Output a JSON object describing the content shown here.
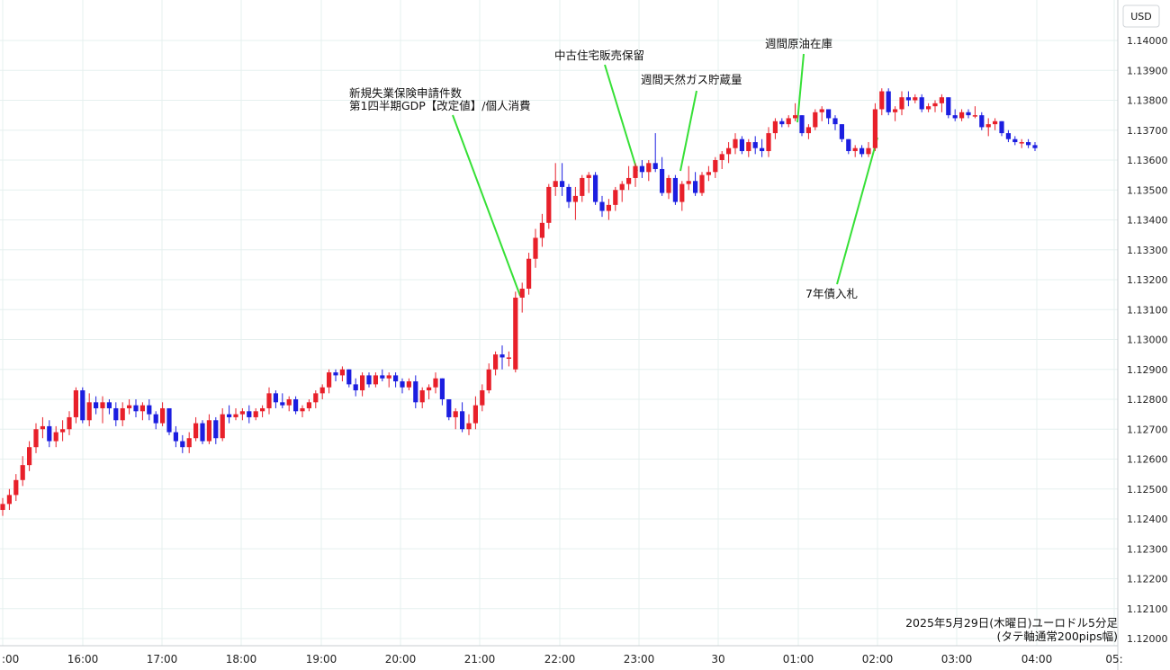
{
  "chart_data": {
    "type": "candlestick",
    "title": "",
    "currency_label": "USD",
    "footnote": [
      "2025年5月29日(木曜日)ユーロドル5分足",
      "(タテ軸通常200pips幅)"
    ],
    "x_tick_labels": [
      ":00",
      "16:00",
      "17:00",
      "18:00",
      "19:00",
      "20:00",
      "21:00",
      "22:00",
      "23:00",
      "30",
      "01:00",
      "02:00",
      "03:00",
      "04:00",
      "05:"
    ],
    "y_tick_labels": [
      "1.14000",
      "1.13900",
      "1.13800",
      "1.13700",
      "1.13600",
      "1.13500",
      "1.13400",
      "1.13300",
      "1.13200",
      "1.13100",
      "1.13000",
      "1.12900",
      "1.12800",
      "1.12700",
      "1.12600",
      "1.12500",
      "1.12400",
      "1.12300",
      "1.12200",
      "1.12100",
      "1.12000"
    ],
    "ylim": [
      1.1195,
      1.1412
    ],
    "grid": true,
    "colors": {
      "up": "#e8202a",
      "down": "#1c1ee0",
      "annotation_line": "#36e036",
      "grid": "#e6f0ef"
    },
    "annotations": [
      {
        "lines": [
          "新規失業保険申請件数",
          "第1四半期GDP【改定値】/個人消費"
        ]
      },
      {
        "lines": [
          "中古住宅販売保留"
        ]
      },
      {
        "lines": [
          "週間天然ガス貯蔵量"
        ]
      },
      {
        "lines": [
          "週間原油在庫"
        ]
      },
      {
        "lines": [
          "7年債入札"
        ]
      }
    ],
    "candles": [
      [
        1.1243,
        1.1247,
        1.1241,
        1.1245
      ],
      [
        1.1245,
        1.125,
        1.1243,
        1.1248
      ],
      [
        1.1248,
        1.1255,
        1.1246,
        1.1253
      ],
      [
        1.1253,
        1.1261,
        1.1251,
        1.1258
      ],
      [
        1.1258,
        1.1266,
        1.1256,
        1.1264
      ],
      [
        1.1264,
        1.1272,
        1.1262,
        1.127
      ],
      [
        1.127,
        1.1274,
        1.1267,
        1.1271
      ],
      [
        1.1271,
        1.1273,
        1.1264,
        1.1266
      ],
      [
        1.1266,
        1.1271,
        1.1264,
        1.1269
      ],
      [
        1.1269,
        1.1273,
        1.1266,
        1.127
      ],
      [
        1.127,
        1.1276,
        1.1268,
        1.1274
      ],
      [
        1.1274,
        1.1284,
        1.1272,
        1.1283
      ],
      [
        1.1283,
        1.1284,
        1.1272,
        1.1273
      ],
      [
        1.1273,
        1.1282,
        1.1271,
        1.1279
      ],
      [
        1.1279,
        1.1281,
        1.1275,
        1.1277
      ],
      [
        1.1277,
        1.1281,
        1.1272,
        1.1279
      ],
      [
        1.1279,
        1.128,
        1.1275,
        1.1277
      ],
      [
        1.1277,
        1.1279,
        1.1271,
        1.1273
      ],
      [
        1.1273,
        1.1279,
        1.1271,
        1.1277
      ],
      [
        1.1277,
        1.128,
        1.1275,
        1.1278
      ],
      [
        1.1278,
        1.128,
        1.1274,
        1.1276
      ],
      [
        1.1276,
        1.1279,
        1.1273,
        1.1278
      ],
      [
        1.1278,
        1.128,
        1.1273,
        1.1275
      ],
      [
        1.1275,
        1.1276,
        1.127,
        1.1272
      ],
      [
        1.1272,
        1.1279,
        1.1271,
        1.1277
      ],
      [
        1.1277,
        1.1277,
        1.1268,
        1.1269
      ],
      [
        1.1269,
        1.1271,
        1.1264,
        1.1266
      ],
      [
        1.1266,
        1.1268,
        1.1262,
        1.1264
      ],
      [
        1.1264,
        1.1269,
        1.1262,
        1.1267
      ],
      [
        1.1267,
        1.1274,
        1.1266,
        1.1272
      ],
      [
        1.1272,
        1.1273,
        1.1265,
        1.1266
      ],
      [
        1.1266,
        1.1275,
        1.1265,
        1.1273
      ],
      [
        1.1273,
        1.1274,
        1.1265,
        1.1267
      ],
      [
        1.1267,
        1.1277,
        1.1266,
        1.1275
      ],
      [
        1.1275,
        1.1278,
        1.1272,
        1.1274
      ],
      [
        1.1274,
        1.1277,
        1.1273,
        1.1275
      ],
      [
        1.1275,
        1.1277,
        1.1273,
        1.1276
      ],
      [
        1.1276,
        1.1278,
        1.1272,
        1.1274
      ],
      [
        1.1274,
        1.1277,
        1.1273,
        1.1276
      ],
      [
        1.1276,
        1.1278,
        1.1274,
        1.1277
      ],
      [
        1.1277,
        1.1284,
        1.1275,
        1.1282
      ],
      [
        1.1282,
        1.1283,
        1.1277,
        1.1279
      ],
      [
        1.1279,
        1.1282,
        1.1277,
        1.1278
      ],
      [
        1.1278,
        1.1281,
        1.1276,
        1.128
      ],
      [
        1.128,
        1.1281,
        1.1275,
        1.1276
      ],
      [
        1.1276,
        1.1278,
        1.1274,
        1.1277
      ],
      [
        1.1277,
        1.128,
        1.1276,
        1.1279
      ],
      [
        1.1279,
        1.1283,
        1.1277,
        1.1282
      ],
      [
        1.1282,
        1.1285,
        1.128,
        1.1284
      ],
      [
        1.1284,
        1.129,
        1.1282,
        1.1289
      ],
      [
        1.1289,
        1.129,
        1.1286,
        1.1288
      ],
      [
        1.1288,
        1.1291,
        1.1286,
        1.129
      ],
      [
        1.129,
        1.129,
        1.1284,
        1.1285
      ],
      [
        1.1285,
        1.1287,
        1.1281,
        1.1283
      ],
      [
        1.1283,
        1.1289,
        1.1281,
        1.1288
      ],
      [
        1.1288,
        1.1289,
        1.1284,
        1.1285
      ],
      [
        1.1285,
        1.1289,
        1.1284,
        1.1288
      ],
      [
        1.1288,
        1.129,
        1.1286,
        1.1287
      ],
      [
        1.1287,
        1.1289,
        1.1284,
        1.1288
      ],
      [
        1.1288,
        1.1289,
        1.1284,
        1.1286
      ],
      [
        1.1286,
        1.1287,
        1.1282,
        1.1284
      ],
      [
        1.1284,
        1.1287,
        1.1283,
        1.1286
      ],
      [
        1.1286,
        1.1288,
        1.1277,
        1.1279
      ],
      [
        1.1279,
        1.1284,
        1.1277,
        1.1283
      ],
      [
        1.1283,
        1.1285,
        1.128,
        1.1284
      ],
      [
        1.1284,
        1.1289,
        1.1282,
        1.1287
      ],
      [
        1.1287,
        1.1287,
        1.1278,
        1.128
      ],
      [
        1.128,
        1.128,
        1.1273,
        1.1274
      ],
      [
        1.1274,
        1.1277,
        1.127,
        1.1276
      ],
      [
        1.1276,
        1.1279,
        1.1269,
        1.127
      ],
      [
        1.127,
        1.1275,
        1.1268,
        1.1272
      ],
      [
        1.1272,
        1.1281,
        1.127,
        1.1278
      ],
      [
        1.1278,
        1.1285,
        1.1276,
        1.1283
      ],
      [
        1.1283,
        1.1292,
        1.1282,
        1.129
      ],
      [
        1.129,
        1.1296,
        1.1288,
        1.1295
      ],
      [
        1.1295,
        1.1298,
        1.129,
        1.1294
      ],
      [
        1.1294,
        1.1296,
        1.1291,
        1.1294
      ],
      [
        1.129,
        1.1316,
        1.1289,
        1.1314
      ],
      [
        1.1314,
        1.1319,
        1.1309,
        1.1317
      ],
      [
        1.1317,
        1.1329,
        1.1315,
        1.1327
      ],
      [
        1.1327,
        1.1337,
        1.1324,
        1.1334
      ],
      [
        1.1334,
        1.1342,
        1.1331,
        1.1339
      ],
      [
        1.1339,
        1.1352,
        1.1337,
        1.1351
      ],
      [
        1.1351,
        1.1359,
        1.1348,
        1.1353
      ],
      [
        1.1353,
        1.1359,
        1.1348,
        1.1351
      ],
      [
        1.1351,
        1.1352,
        1.1344,
        1.1346
      ],
      [
        1.1346,
        1.1351,
        1.134,
        1.1348
      ],
      [
        1.1348,
        1.1355,
        1.1346,
        1.1354
      ],
      [
        1.1354,
        1.1356,
        1.1349,
        1.1355
      ],
      [
        1.1355,
        1.1356,
        1.1345,
        1.1346
      ],
      [
        1.1346,
        1.1348,
        1.1341,
        1.1343
      ],
      [
        1.1343,
        1.1347,
        1.134,
        1.1345
      ],
      [
        1.1345,
        1.1351,
        1.1343,
        1.135
      ],
      [
        1.135,
        1.1353,
        1.1346,
        1.1352
      ],
      [
        1.1352,
        1.1358,
        1.135,
        1.1354
      ],
      [
        1.1354,
        1.1359,
        1.1351,
        1.1358
      ],
      [
        1.1358,
        1.136,
        1.1354,
        1.1356
      ],
      [
        1.1356,
        1.136,
        1.1353,
        1.1359
      ],
      [
        1.1359,
        1.1369,
        1.1356,
        1.1357
      ],
      [
        1.1357,
        1.1361,
        1.1348,
        1.1349
      ],
      [
        1.1349,
        1.1355,
        1.1347,
        1.1354
      ],
      [
        1.1354,
        1.1355,
        1.1345,
        1.1346
      ],
      [
        1.1346,
        1.1353,
        1.1343,
        1.1352
      ],
      [
        1.1352,
        1.1358,
        1.135,
        1.1353
      ],
      [
        1.1353,
        1.1356,
        1.1348,
        1.1349
      ],
      [
        1.1349,
        1.1356,
        1.1348,
        1.1355
      ],
      [
        1.1355,
        1.1358,
        1.1353,
        1.1356
      ],
      [
        1.1356,
        1.1361,
        1.1354,
        1.136
      ],
      [
        1.136,
        1.1363,
        1.1357,
        1.1362
      ],
      [
        1.1362,
        1.1366,
        1.1359,
        1.1364
      ],
      [
        1.1364,
        1.1369,
        1.1362,
        1.1367
      ],
      [
        1.1367,
        1.1368,
        1.1362,
        1.1363
      ],
      [
        1.1363,
        1.1367,
        1.1361,
        1.1366
      ],
      [
        1.1366,
        1.1368,
        1.1362,
        1.1364
      ],
      [
        1.1364,
        1.1367,
        1.1361,
        1.1363
      ],
      [
        1.1363,
        1.1371,
        1.1361,
        1.1369
      ],
      [
        1.1369,
        1.1374,
        1.1367,
        1.1373
      ],
      [
        1.1373,
        1.1374,
        1.1371,
        1.1372
      ],
      [
        1.1372,
        1.1375,
        1.1371,
        1.1374
      ],
      [
        1.1374,
        1.1379,
        1.1373,
        1.1375
      ],
      [
        1.1375,
        1.1375,
        1.1368,
        1.1369
      ],
      [
        1.1369,
        1.1372,
        1.1367,
        1.1371
      ],
      [
        1.1371,
        1.1377,
        1.137,
        1.1376
      ],
      [
        1.1376,
        1.1378,
        1.1373,
        1.1377
      ],
      [
        1.1377,
        1.1377,
        1.1372,
        1.1374
      ],
      [
        1.1374,
        1.1375,
        1.137,
        1.1372
      ],
      [
        1.1372,
        1.1372,
        1.1366,
        1.1367
      ],
      [
        1.1367,
        1.1367,
        1.1362,
        1.1363
      ],
      [
        1.1363,
        1.1365,
        1.1361,
        1.1364
      ],
      [
        1.1364,
        1.1365,
        1.1361,
        1.1362
      ],
      [
        1.1362,
        1.1366,
        1.1361,
        1.1364
      ],
      [
        1.1364,
        1.1379,
        1.1363,
        1.1377
      ],
      [
        1.1377,
        1.1384,
        1.1375,
        1.1383
      ],
      [
        1.1383,
        1.1384,
        1.1375,
        1.1376
      ],
      [
        1.1376,
        1.1378,
        1.1373,
        1.1377
      ],
      [
        1.1377,
        1.1383,
        1.1375,
        1.1381
      ],
      [
        1.1381,
        1.1383,
        1.1378,
        1.138
      ],
      [
        1.138,
        1.1382,
        1.1379,
        1.1381
      ],
      [
        1.1381,
        1.1382,
        1.1376,
        1.1377
      ],
      [
        1.1377,
        1.1379,
        1.1376,
        1.1378
      ],
      [
        1.1378,
        1.138,
        1.1376,
        1.1379
      ],
      [
        1.1379,
        1.1382,
        1.1376,
        1.1381
      ],
      [
        1.1381,
        1.1381,
        1.1374,
        1.1375
      ],
      [
        1.1375,
        1.1377,
        1.1373,
        1.1374
      ],
      [
        1.1374,
        1.1377,
        1.1373,
        1.1376
      ],
      [
        1.1376,
        1.1377,
        1.1374,
        1.1375
      ],
      [
        1.1375,
        1.1378,
        1.1374,
        1.1375
      ],
      [
        1.1375,
        1.1376,
        1.137,
        1.1371
      ],
      [
        1.1371,
        1.1374,
        1.1368,
        1.1372
      ],
      [
        1.1372,
        1.1374,
        1.137,
        1.1373
      ],
      [
        1.1373,
        1.1373,
        1.1368,
        1.1369
      ],
      [
        1.1369,
        1.137,
        1.1366,
        1.1367
      ],
      [
        1.1367,
        1.1368,
        1.1365,
        1.1366
      ],
      [
        1.1366,
        1.1367,
        1.1364,
        1.1366
      ],
      [
        1.1366,
        1.1367,
        1.1364,
        1.1365
      ],
      [
        1.1365,
        1.1366,
        1.1363,
        1.1364
      ]
    ]
  }
}
